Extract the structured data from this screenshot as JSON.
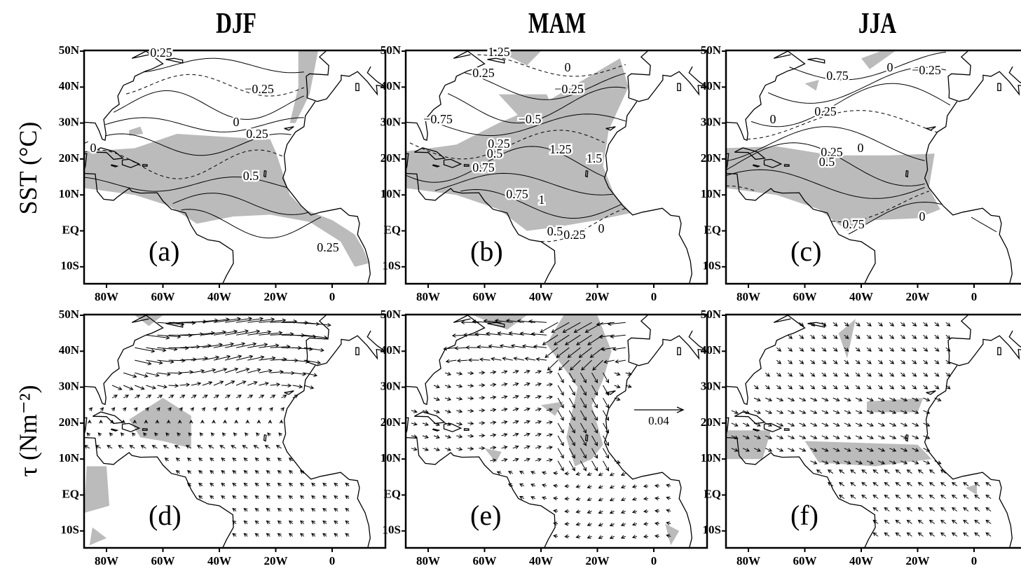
{
  "columns": [
    "DJF",
    "MAM",
    "JJA"
  ],
  "rows": [
    "SST (°C)",
    "τ (Nm⁻²)"
  ],
  "lat_ticks": [
    "50N",
    "40N",
    "30N",
    "20N",
    "10N",
    "EQ",
    "10S"
  ],
  "lon_ticks": [
    "80W",
    "60W",
    "40W",
    "20W",
    "0"
  ],
  "panels": [
    {
      "label": "(a)",
      "contour_labels": [
        "0.25",
        "−0.25",
        "0",
        "0.25",
        "0",
        "0.5",
        "0.25"
      ]
    },
    {
      "label": "(b)",
      "contour_labels": [
        "1.25",
        "0.25",
        "0",
        "−0.25",
        "−0.75",
        "−0.5",
        "0.25",
        "0.5",
        "0.75",
        "1.25",
        "1.5",
        "0.75",
        "1",
        "0.5",
        "0.25",
        "0"
      ]
    },
    {
      "label": "(c)",
      "contour_labels": [
        "0.75",
        "0",
        "−0.25",
        "0.25",
        "0",
        "0.25",
        "0",
        "0.5",
        "0.75",
        "0"
      ]
    },
    {
      "label": "(d)"
    },
    {
      "label": "(e)"
    },
    {
      "label": "(f)"
    }
  ],
  "reference_vector": "0.04"
}
